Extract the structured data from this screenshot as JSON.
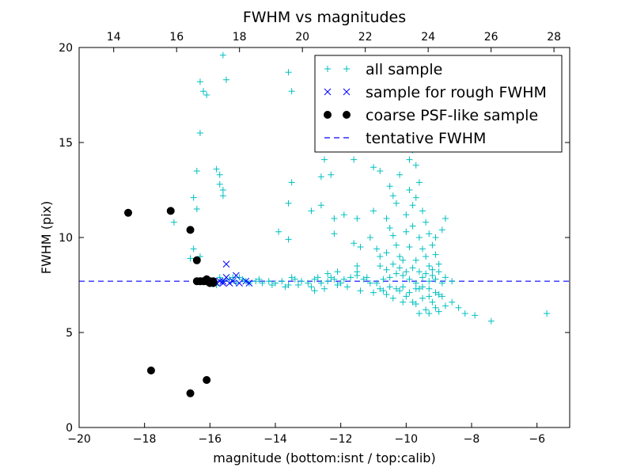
{
  "chart_data": {
    "type": "scatter",
    "title": "FWHM vs magnitudes",
    "xlabel": "magnitude (bottom:isnt / top:calib)",
    "ylabel": "FWHM (pix)",
    "xlim": [
      -20,
      -5
    ],
    "ylim": [
      0,
      20
    ],
    "top_xlim": [
      12.9,
      28.5
    ],
    "x_ticks": [
      -20,
      -18,
      -16,
      -14,
      -12,
      -10,
      -8,
      -6
    ],
    "x_tick_labels": [
      "−20",
      "−18",
      "−16",
      "−14",
      "−12",
      "−10",
      "−8",
      "−6"
    ],
    "top_ticks": [
      14,
      16,
      18,
      20,
      22,
      24,
      26,
      28
    ],
    "top_tick_labels": [
      "14",
      "16",
      "18",
      "20",
      "22",
      "24",
      "26",
      "28"
    ],
    "y_ticks": [
      0,
      5,
      10,
      15,
      20
    ],
    "y_tick_labels": [
      "0",
      "5",
      "10",
      "15",
      "20"
    ],
    "legend_position": "top-right",
    "colors": {
      "all": "#00bfbf",
      "rough": "#0000ff",
      "coarse": "#000000",
      "tentative": "#0000ff"
    },
    "tentative_fwhm": 7.7,
    "series": [
      {
        "name": "all sample",
        "marker": "plus",
        "color": "#00bfbf",
        "points": [
          [
            -15.6,
            19.6
          ],
          [
            -15.5,
            18.3
          ],
          [
            -16.3,
            18.2
          ],
          [
            -16.2,
            17.7
          ],
          [
            -16.1,
            17.5
          ],
          [
            -13.6,
            18.7
          ],
          [
            -13.5,
            17.7
          ],
          [
            -16.3,
            15.5
          ],
          [
            -15.8,
            13.6
          ],
          [
            -15.7,
            13.3
          ],
          [
            -15.7,
            12.8
          ],
          [
            -15.6,
            12.5
          ],
          [
            -15.6,
            12.2
          ],
          [
            -16.4,
            13.5
          ],
          [
            -16.5,
            12.1
          ],
          [
            -16.4,
            11.5
          ],
          [
            -17.1,
            10.8
          ],
          [
            -16.6,
            8.9
          ],
          [
            -16.3,
            9.0
          ],
          [
            -16.5,
            9.4
          ],
          [
            -13.5,
            12.9
          ],
          [
            -12.6,
            13.2
          ],
          [
            -12.5,
            14.1
          ],
          [
            -12.3,
            13.3
          ],
          [
            -11.6,
            14.1
          ],
          [
            -11.0,
            13.7
          ],
          [
            -10.8,
            13.5
          ],
          [
            -13.6,
            11.8
          ],
          [
            -12.9,
            11.4
          ],
          [
            -13.9,
            10.3
          ],
          [
            -13.6,
            9.9
          ],
          [
            -12.6,
            11.7
          ],
          [
            -12.2,
            11.0
          ],
          [
            -11.9,
            11.2
          ],
          [
            -11.5,
            11.0
          ],
          [
            -11.0,
            11.4
          ],
          [
            -12.2,
            10.2
          ],
          [
            -11.5,
            8.5
          ],
          [
            -11.4,
            9.5
          ],
          [
            -10.9,
            9.4
          ],
          [
            -11.1,
            10.0
          ],
          [
            -11.6,
            9.7
          ],
          [
            -10.5,
            12.7
          ],
          [
            -10.4,
            12.2
          ],
          [
            -10.3,
            11.8
          ],
          [
            -10.6,
            11.0
          ],
          [
            -10.5,
            10.5
          ],
          [
            -10.4,
            10.1
          ],
          [
            -10.3,
            9.6
          ],
          [
            -10.2,
            9.0
          ],
          [
            -10.1,
            8.8
          ],
          [
            -10.0,
            11.2
          ],
          [
            -9.9,
            12.5
          ],
          [
            -9.8,
            11.7
          ],
          [
            -9.7,
            12.1
          ],
          [
            -9.6,
            12.9
          ],
          [
            -9.5,
            11.4
          ],
          [
            -9.4,
            10.8
          ],
          [
            -9.3,
            10.2
          ],
          [
            -9.2,
            9.6
          ],
          [
            -9.1,
            9.1
          ],
          [
            -9.0,
            8.6
          ],
          [
            -9.8,
            10.6
          ],
          [
            -9.6,
            10.0
          ],
          [
            -9.5,
            9.4
          ],
          [
            -9.4,
            9.0
          ],
          [
            -9.3,
            8.5
          ],
          [
            -9.2,
            8.3
          ],
          [
            -9.7,
            8.8
          ],
          [
            -9.9,
            9.5
          ],
          [
            -10.0,
            10.3
          ],
          [
            -10.2,
            13.3
          ],
          [
            -9.9,
            14.1
          ],
          [
            -9.8,
            14.6
          ],
          [
            -9.7,
            13.8
          ],
          [
            -10.3,
            14.8
          ],
          [
            -10.2,
            15.3
          ],
          [
            -9.9,
            16.2
          ],
          [
            -8.9,
            10.4
          ],
          [
            -8.8,
            11.0
          ],
          [
            -9.1,
            10.0
          ],
          [
            -12.8,
            7.2
          ],
          [
            -12.5,
            7.3
          ],
          [
            -12.1,
            7.5
          ],
          [
            -11.8,
            7.4
          ],
          [
            -11.4,
            7.2
          ],
          [
            -11.0,
            7.1
          ],
          [
            -10.8,
            7.3
          ],
          [
            -10.6,
            7.0
          ],
          [
            -10.4,
            6.8
          ],
          [
            -10.2,
            7.2
          ],
          [
            -10.1,
            6.6
          ],
          [
            -10.0,
            6.9
          ],
          [
            -9.9,
            7.1
          ],
          [
            -9.8,
            6.6
          ],
          [
            -9.7,
            6.5
          ],
          [
            -9.6,
            7.3
          ],
          [
            -9.5,
            6.8
          ],
          [
            -9.4,
            6.2
          ],
          [
            -9.3,
            6.0
          ],
          [
            -9.2,
            6.6
          ],
          [
            -9.1,
            6.3
          ],
          [
            -9.0,
            6.1
          ],
          [
            -8.9,
            6.9
          ],
          [
            -8.8,
            6.4
          ],
          [
            -8.6,
            6.6
          ],
          [
            -8.4,
            6.3
          ],
          [
            -8.2,
            6.0
          ],
          [
            -7.9,
            5.9
          ],
          [
            -7.4,
            5.6
          ],
          [
            -5.7,
            6.0
          ],
          [
            -9.6,
            6.0
          ],
          [
            -9.3,
            6.9
          ],
          [
            -9.0,
            7.0
          ],
          [
            -10.9,
            7.6
          ],
          [
            -10.7,
            7.8
          ],
          [
            -10.5,
            7.9
          ],
          [
            -10.3,
            8.1
          ],
          [
            -10.1,
            8.0
          ],
          [
            -9.9,
            7.8
          ],
          [
            -9.7,
            7.6
          ],
          [
            -9.5,
            7.9
          ],
          [
            -9.3,
            7.7
          ],
          [
            -9.1,
            7.8
          ],
          [
            -8.9,
            7.6
          ],
          [
            -8.8,
            7.9
          ],
          [
            -8.6,
            7.7
          ],
          [
            -11.7,
            7.9
          ],
          [
            -11.5,
            8.0
          ],
          [
            -11.3,
            7.8
          ],
          [
            -11.1,
            7.6
          ],
          [
            -12.0,
            7.6
          ],
          [
            -12.2,
            7.8
          ],
          [
            -12.4,
            7.7
          ],
          [
            -12.6,
            7.6
          ],
          [
            -12.8,
            7.8
          ],
          [
            -13.0,
            7.6
          ],
          [
            -13.2,
            7.7
          ],
          [
            -13.4,
            7.8
          ],
          [
            -13.6,
            7.5
          ],
          [
            -13.8,
            7.7
          ],
          [
            -14.0,
            7.6
          ],
          [
            -14.2,
            7.7
          ],
          [
            -14.4,
            7.6
          ],
          [
            -14.6,
            7.7
          ],
          [
            -14.8,
            7.6
          ],
          [
            -15.0,
            7.8
          ],
          [
            -15.2,
            7.6
          ],
          [
            -15.4,
            7.8
          ],
          [
            -15.6,
            7.7
          ],
          [
            -15.8,
            7.5
          ],
          [
            -14.1,
            7.5
          ],
          [
            -13.7,
            7.4
          ],
          [
            -13.3,
            7.5
          ],
          [
            -12.9,
            7.4
          ],
          [
            -14.5,
            7.8
          ],
          [
            -15.1,
            7.9
          ],
          [
            -14.9,
            7.7
          ],
          [
            -13.5,
            7.9
          ],
          [
            -12.7,
            7.9
          ],
          [
            -11.9,
            7.8
          ],
          [
            -11.2,
            7.9
          ],
          [
            -10.6,
            8.3
          ],
          [
            -10.4,
            8.6
          ],
          [
            -10.2,
            8.4
          ],
          [
            -10.0,
            8.2
          ],
          [
            -9.8,
            8.4
          ],
          [
            -9.6,
            8.2
          ],
          [
            -9.4,
            8.1
          ],
          [
            -9.2,
            8.0
          ],
          [
            -9.0,
            8.2
          ],
          [
            -10.8,
            8.5
          ],
          [
            -10.6,
            9.2
          ],
          [
            -10.8,
            9.0
          ],
          [
            -12.1,
            8.2
          ],
          [
            -12.3,
            7.9
          ],
          [
            -12.4,
            8.1
          ],
          [
            -11.5,
            8.2
          ],
          [
            -15.3,
            7.9
          ],
          [
            -15.7,
            7.9
          ],
          [
            -9.7,
            7.3
          ],
          [
            -9.5,
            7.4
          ],
          [
            -9.3,
            7.3
          ],
          [
            -9.1,
            7.1
          ],
          [
            -10.1,
            7.4
          ],
          [
            -10.3,
            7.3
          ],
          [
            -10.5,
            7.4
          ],
          [
            -10.7,
            7.2
          ]
        ]
      },
      {
        "name": "sample for rough FWHM",
        "marker": "x",
        "color": "#0000ff",
        "points": [
          [
            -15.5,
            8.6
          ],
          [
            -15.2,
            8.0
          ],
          [
            -15.5,
            7.9
          ],
          [
            -15.6,
            7.7
          ],
          [
            -15.7,
            7.7
          ],
          [
            -15.8,
            7.6
          ],
          [
            -15.9,
            7.7
          ],
          [
            -15.3,
            7.7
          ],
          [
            -15.1,
            7.6
          ],
          [
            -14.9,
            7.7
          ],
          [
            -14.8,
            7.6
          ],
          [
            -15.4,
            7.6
          ],
          [
            -15.6,
            7.6
          ],
          [
            -16.0,
            7.7
          ]
        ]
      },
      {
        "name": "coarse PSF-like sample",
        "marker": "circle",
        "color": "#000000",
        "points": [
          [
            -18.5,
            11.3
          ],
          [
            -17.2,
            11.4
          ],
          [
            -16.6,
            10.4
          ],
          [
            -16.4,
            8.8
          ],
          [
            -16.4,
            7.7
          ],
          [
            -16.3,
            7.7
          ],
          [
            -16.2,
            7.7
          ],
          [
            -16.1,
            7.7
          ],
          [
            -16.0,
            7.7
          ],
          [
            -15.9,
            7.7
          ],
          [
            -16.1,
            7.8
          ],
          [
            -15.9,
            7.6
          ],
          [
            -16.0,
            7.6
          ],
          [
            -17.8,
            3.0
          ],
          [
            -16.1,
            2.5
          ],
          [
            -16.6,
            1.8
          ]
        ]
      }
    ],
    "legend": [
      {
        "label": "all sample",
        "marker": "plus",
        "color": "#00bfbf"
      },
      {
        "label": "sample for rough FWHM",
        "marker": "x",
        "color": "#0000ff"
      },
      {
        "label": "coarse PSF-like sample",
        "marker": "circle",
        "color": "#000000"
      },
      {
        "label": "tentative FWHM",
        "marker": "dashed-line",
        "color": "#0000ff"
      }
    ]
  }
}
